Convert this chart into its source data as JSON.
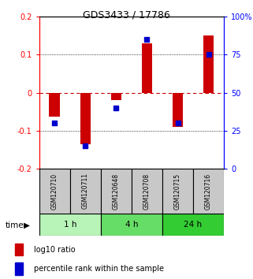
{
  "title": "GDS3433 / 17786",
  "samples": [
    "GSM120710",
    "GSM120711",
    "GSM120648",
    "GSM120708",
    "GSM120715",
    "GSM120716"
  ],
  "log10_ratio": [
    -0.062,
    -0.135,
    -0.02,
    0.13,
    -0.09,
    0.15
  ],
  "percentile_rank": [
    30,
    15,
    40,
    85,
    30,
    75
  ],
  "time_groups": [
    {
      "label": "1 h",
      "cols": [
        0,
        1
      ],
      "color": "#b8f4b8"
    },
    {
      "label": "4 h",
      "cols": [
        2,
        3
      ],
      "color": "#66dd66"
    },
    {
      "label": "24 h",
      "cols": [
        4,
        5
      ],
      "color": "#33cc33"
    }
  ],
  "ylim_left": [
    -0.2,
    0.2
  ],
  "ylim_right": [
    0,
    100
  ],
  "bar_color": "#cc0000",
  "dot_color": "#0000cc",
  "bar_width": 0.35,
  "dot_size": 20,
  "yticks_left": [
    -0.2,
    -0.1,
    0.0,
    0.1,
    0.2
  ],
  "yticks_right": [
    0,
    25,
    50,
    75,
    100
  ],
  "ytick_labels_right": [
    "0",
    "25",
    "50",
    "75",
    "100%"
  ],
  "legend_bar_label": "log10 ratio",
  "legend_dot_label": "percentile rank within the sample",
  "xlabel": "time",
  "background_color": "#ffffff",
  "plot_bg": "#ffffff",
  "zero_line_color": "#cc0000",
  "dotted_line_color": "#000000",
  "sample_box_color": "#c8c8c8"
}
